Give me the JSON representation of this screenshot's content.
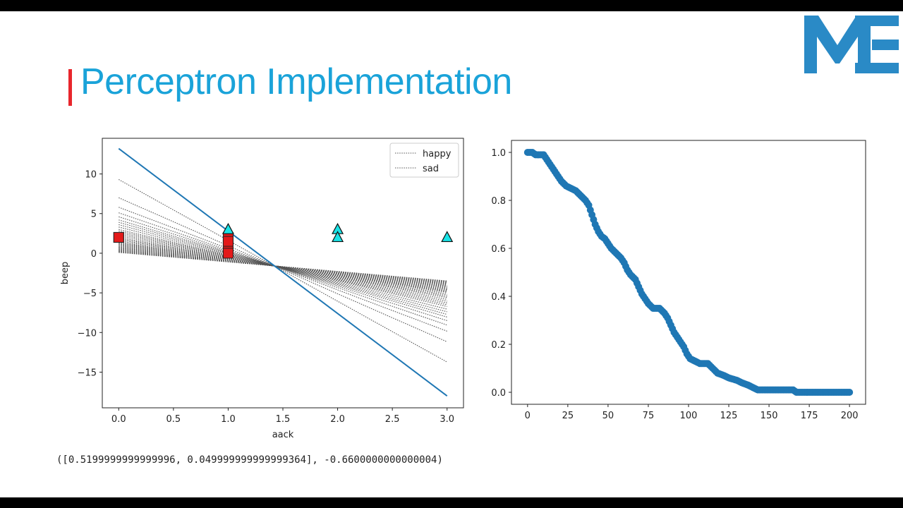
{
  "slide": {
    "title": "Perceptron Implementation",
    "logo_text": "ME",
    "accent_color": "#e8262c",
    "title_color": "#1aa3d9",
    "logo_color": "#2a8ac6",
    "output_text": "([0.5199999999999996, 0.049999999999999364], -0.6600000000000004)"
  },
  "chart_data": [
    {
      "type": "scatter",
      "xlabel": "aack",
      "ylabel": "beep",
      "xlim": [
        -0.15,
        3.15
      ],
      "ylim": [
        -19.5,
        14.5
      ],
      "xticks": [
        0.0,
        0.5,
        1.0,
        1.5,
        2.0,
        2.5,
        3.0
      ],
      "xtick_labels": [
        "0.0",
        "0.5",
        "1.0",
        "1.5",
        "2.0",
        "2.5",
        "3.0"
      ],
      "yticks": [
        10,
        5,
        0,
        -5,
        -10,
        -15
      ],
      "ytick_labels": [
        "10",
        "5",
        "0",
        "−5",
        "−10",
        "−15"
      ],
      "legend": {
        "position": "top-right",
        "entries": [
          {
            "label": "happy",
            "style": "dotted",
            "color": "#555555"
          },
          {
            "label": "sad",
            "style": "dotted",
            "color": "#555555"
          }
        ]
      },
      "happy_points": {
        "marker": "triangle",
        "color": "#19e3e6",
        "x": [
          1,
          2,
          2,
          3
        ],
        "y": [
          3,
          3,
          2,
          2
        ]
      },
      "sad_points": {
        "marker": "square",
        "color": "#e31a1a",
        "x": [
          0,
          0,
          1,
          1,
          1,
          1
        ],
        "y": [
          2,
          2,
          2,
          1,
          0,
          1.5
        ]
      },
      "intermediate_lines": {
        "style": "dotted",
        "color": "#555555",
        "count": 36,
        "pivot": [
          1.42,
          -1.6
        ],
        "y_at_x0": [
          9.3,
          7.0,
          5.8,
          5.1,
          4.6,
          4.2,
          3.9,
          3.6,
          3.3,
          3.0,
          2.8,
          2.6,
          2.4,
          2.2,
          2.0,
          1.85,
          1.7,
          1.55,
          1.4,
          1.3,
          1.2,
          1.1,
          1.0,
          0.9,
          0.8,
          0.72,
          0.64,
          0.56,
          0.48,
          0.42,
          0.36,
          0.3,
          0.25,
          0.2,
          0.15,
          0.1
        ]
      },
      "final_line": {
        "color": "#1f77b4",
        "x": [
          0,
          3
        ],
        "y": [
          13.2,
          -18.0
        ]
      }
    },
    {
      "type": "scatter",
      "xlabel": "",
      "ylabel": "",
      "xlim": [
        -10,
        210
      ],
      "ylim": [
        -0.05,
        1.05
      ],
      "xticks": [
        0,
        25,
        50,
        75,
        100,
        125,
        150,
        175,
        200
      ],
      "xtick_labels": [
        "0",
        "25",
        "50",
        "75",
        "100",
        "125",
        "150",
        "175",
        "200"
      ],
      "yticks": [
        1.0,
        0.8,
        0.6,
        0.4,
        0.2,
        0.0
      ],
      "ytick_labels": [
        "1.0",
        "0.8",
        "0.6",
        "0.4",
        "0.2",
        "0.0"
      ],
      "series": [
        {
          "color": "#1f77b4",
          "points": [
            [
              0,
              1.0
            ],
            [
              3,
              1.0
            ],
            [
              5,
              0.99
            ],
            [
              10,
              0.99
            ],
            [
              12,
              0.97
            ],
            [
              15,
              0.94
            ],
            [
              18,
              0.91
            ],
            [
              21,
              0.88
            ],
            [
              24,
              0.86
            ],
            [
              27,
              0.85
            ],
            [
              30,
              0.84
            ],
            [
              33,
              0.82
            ],
            [
              36,
              0.8
            ],
            [
              38,
              0.78
            ],
            [
              40,
              0.74
            ],
            [
              42,
              0.7
            ],
            [
              44,
              0.67
            ],
            [
              46,
              0.65
            ],
            [
              48,
              0.64
            ],
            [
              50,
              0.62
            ],
            [
              52,
              0.6
            ],
            [
              55,
              0.58
            ],
            [
              58,
              0.56
            ],
            [
              60,
              0.54
            ],
            [
              62,
              0.51
            ],
            [
              64,
              0.49
            ],
            [
              67,
              0.47
            ],
            [
              69,
              0.44
            ],
            [
              71,
              0.41
            ],
            [
              73,
              0.39
            ],
            [
              75,
              0.37
            ],
            [
              78,
              0.35
            ],
            [
              82,
              0.35
            ],
            [
              85,
              0.33
            ],
            [
              87,
              0.31
            ],
            [
              89,
              0.28
            ],
            [
              91,
              0.25
            ],
            [
              93,
              0.23
            ],
            [
              95,
              0.21
            ],
            [
              97,
              0.19
            ],
            [
              99,
              0.16
            ],
            [
              101,
              0.14
            ],
            [
              104,
              0.13
            ],
            [
              107,
              0.12
            ],
            [
              112,
              0.12
            ],
            [
              115,
              0.1
            ],
            [
              118,
              0.08
            ],
            [
              122,
              0.07
            ],
            [
              125,
              0.06
            ],
            [
              130,
              0.05
            ],
            [
              133,
              0.04
            ],
            [
              137,
              0.03
            ],
            [
              140,
              0.02
            ],
            [
              143,
              0.01
            ],
            [
              150,
              0.01
            ],
            [
              160,
              0.01
            ],
            [
              165,
              0.01
            ],
            [
              167,
              0.0
            ],
            [
              175,
              0.0
            ],
            [
              185,
              0.0
            ],
            [
              195,
              0.0
            ],
            [
              200,
              0.0
            ]
          ]
        }
      ]
    }
  ]
}
